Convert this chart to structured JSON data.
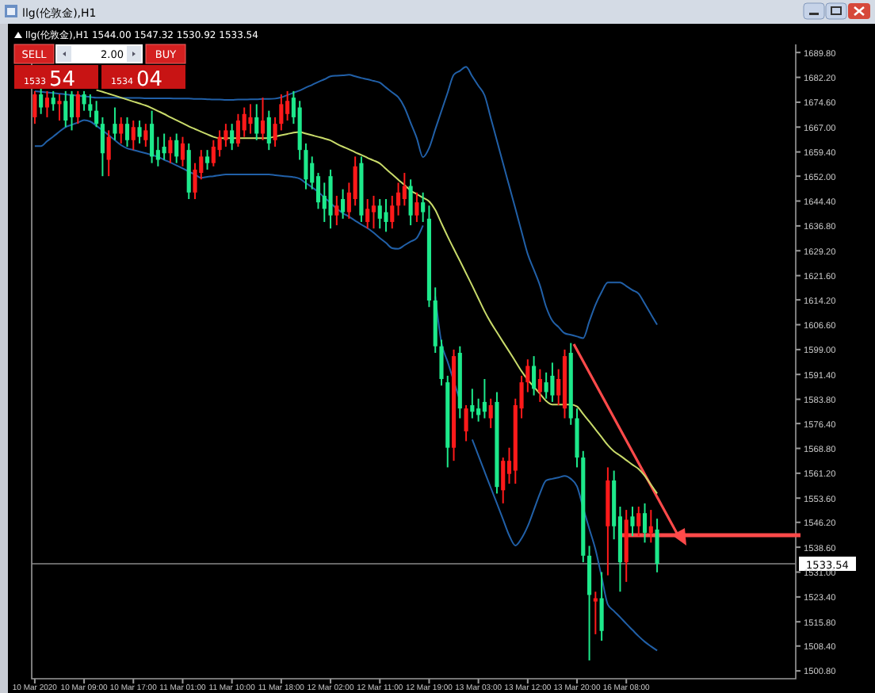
{
  "chart_data": {
    "type": "candlestick",
    "title": "llg(伦敦金),H1",
    "annotations": [
      "llg(伦敦金),H1  1544.00 1547.32 1530.92 1533.54",
      "SELL",
      "2.00",
      "BUY",
      "1533",
      "54",
      "1534",
      "04"
    ],
    "categories": [
      "10 Mar 2020",
      null,
      null,
      null,
      null,
      null,
      null,
      null,
      "10 Mar 09:00",
      null,
      null,
      null,
      null,
      null,
      null,
      null,
      "10 Mar 17:00",
      null,
      null,
      null,
      null,
      null,
      null,
      null,
      "11 Mar 01:00",
      null,
      null,
      null,
      null,
      null,
      null,
      null,
      "11 Mar 10:00",
      null,
      null,
      null,
      null,
      null,
      null,
      null,
      "11 Mar 18:00",
      null,
      null,
      null,
      null,
      null,
      null,
      null,
      "12 Mar 02:00",
      null,
      null,
      null,
      null,
      null,
      null,
      null,
      "12 Mar 11:00",
      null,
      null,
      null,
      null,
      null,
      null,
      null,
      "12 Mar 19:00",
      null,
      null,
      null,
      null,
      null,
      null,
      null,
      "13 Mar 03:00",
      null,
      null,
      null,
      null,
      null,
      null,
      null,
      "13 Mar 12:00",
      null,
      null,
      null,
      null,
      null,
      null,
      null,
      "13 Mar 20:00",
      null,
      null,
      null,
      null,
      null,
      null,
      null,
      "16 Mar 08:00",
      null,
      null,
      null,
      null,
      null
    ],
    "ohlc": [
      [
        1670,
        1678,
        1668,
        1677
      ],
      [
        1677,
        1679,
        1671,
        1673
      ],
      [
        1673,
        1678,
        1670,
        1676
      ],
      [
        1676,
        1678,
        1672,
        1674
      ],
      [
        1674,
        1677,
        1669,
        1675
      ],
      [
        1675,
        1678,
        1667,
        1669
      ],
      [
        1677,
        1678,
        1666,
        1670
      ],
      [
        1670,
        1678,
        1668,
        1677
      ],
      [
        1677,
        1678,
        1672,
        1674
      ],
      [
        1674,
        1677,
        1670,
        1672
      ],
      [
        1672,
        1675,
        1667,
        1668
      ],
      [
        1668,
        1670,
        1652,
        1659
      ],
      [
        1657,
        1666,
        1652,
        1664
      ],
      [
        1668,
        1673,
        1663,
        1665
      ],
      [
        1665,
        1670,
        1662,
        1668
      ],
      [
        1668,
        1670,
        1661,
        1663
      ],
      [
        1663,
        1669,
        1660,
        1667
      ],
      [
        1667,
        1669,
        1662,
        1664
      ],
      [
        1663,
        1668,
        1661,
        1666
      ],
      [
        1668,
        1672,
        1656,
        1658
      ],
      [
        1660,
        1664,
        1655,
        1657
      ],
      [
        1661,
        1665,
        1657,
        1659
      ],
      [
        1659,
        1664,
        1656,
        1663
      ],
      [
        1663,
        1665,
        1656,
        1658
      ],
      [
        1657,
        1664,
        1655,
        1662
      ],
      [
        1660,
        1662,
        1645,
        1647
      ],
      [
        1647,
        1656,
        1645,
        1654
      ],
      [
        1653,
        1660,
        1651,
        1658
      ],
      [
        1658,
        1660,
        1654,
        1656
      ],
      [
        1656,
        1663,
        1655,
        1661
      ],
      [
        1660,
        1666,
        1658,
        1664
      ],
      [
        1663,
        1668,
        1661,
        1666
      ],
      [
        1666,
        1668,
        1660,
        1662
      ],
      [
        1662,
        1671,
        1661,
        1669
      ],
      [
        1666,
        1673,
        1664,
        1671
      ],
      [
        1668,
        1674,
        1665,
        1670
      ],
      [
        1670,
        1674,
        1663,
        1665
      ],
      [
        1665,
        1676,
        1663,
        1669
      ],
      [
        1670,
        1672,
        1660,
        1662
      ],
      [
        1663,
        1670,
        1661,
        1668
      ],
      [
        1668,
        1677,
        1666,
        1674
      ],
      [
        1671,
        1678,
        1669,
        1675
      ],
      [
        1676,
        1678,
        1668,
        1670
      ],
      [
        1673,
        1675,
        1657,
        1660
      ],
      [
        1660,
        1662,
        1648,
        1651
      ],
      [
        1656,
        1658,
        1648,
        1650
      ],
      [
        1652,
        1653,
        1642,
        1644
      ],
      [
        1646,
        1650,
        1638,
        1642
      ],
      [
        1652,
        1654,
        1636,
        1640
      ],
      [
        1640,
        1646,
        1637,
        1643
      ],
      [
        1645,
        1648,
        1639,
        1641
      ],
      [
        1641,
        1650,
        1639,
        1647
      ],
      [
        1645,
        1658,
        1643,
        1655
      ],
      [
        1656,
        1658,
        1638,
        1640
      ],
      [
        1638,
        1645,
        1636,
        1642
      ],
      [
        1641,
        1646,
        1636,
        1643
      ],
      [
        1643,
        1645,
        1636,
        1639
      ],
      [
        1641,
        1645,
        1635,
        1638
      ],
      [
        1638,
        1646,
        1636,
        1643
      ],
      [
        1643,
        1650,
        1640,
        1647
      ],
      [
        1645,
        1653,
        1643,
        1649
      ],
      [
        1649,
        1651,
        1637,
        1640
      ],
      [
        1640,
        1647,
        1638,
        1644
      ],
      [
        1644,
        1647,
        1638,
        1641
      ],
      [
        1639,
        1643,
        1612,
        1614
      ],
      [
        1614,
        1618,
        1598,
        1600
      ],
      [
        1600,
        1602,
        1588,
        1590
      ],
      [
        1589,
        1591,
        1563,
        1569
      ],
      [
        1569,
        1599,
        1565,
        1597
      ],
      [
        1598,
        1600,
        1578,
        1581
      ],
      [
        1574,
        1582,
        1571,
        1581
      ],
      [
        1582,
        1587,
        1578,
        1580
      ],
      [
        1581,
        1584,
        1577,
        1579
      ],
      [
        1583,
        1590,
        1578,
        1580
      ],
      [
        1578,
        1584,
        1575,
        1582
      ],
      [
        1583,
        1586,
        1555,
        1557
      ],
      [
        1556,
        1566,
        1552,
        1565
      ],
      [
        1561,
        1569,
        1558,
        1565
      ],
      [
        1562,
        1584,
        1558,
        1582
      ],
      [
        1581,
        1591,
        1578,
        1589
      ],
      [
        1589,
        1596,
        1586,
        1594
      ],
      [
        1594,
        1597,
        1585,
        1587
      ],
      [
        1586,
        1593,
        1583,
        1590
      ],
      [
        1589,
        1592,
        1584,
        1586
      ],
      [
        1591,
        1595,
        1583,
        1585
      ],
      [
        1585,
        1593,
        1582,
        1590
      ],
      [
        1581,
        1599,
        1578,
        1597
      ],
      [
        1598,
        1601,
        1576,
        1578
      ],
      [
        1578,
        1581,
        1563,
        1566
      ],
      [
        1566,
        1568,
        1534,
        1536
      ],
      [
        1536,
        1539,
        1504,
        1524
      ],
      [
        1522,
        1525,
        1512,
        1523
      ],
      [
        1523,
        1531,
        1510,
        1513
      ],
      [
        1545,
        1563,
        1530,
        1559
      ],
      [
        1559,
        1562,
        1541,
        1545
      ],
      [
        1548,
        1551,
        1525,
        1534
      ],
      [
        1534,
        1550,
        1528,
        1547
      ],
      [
        1548,
        1551,
        1542,
        1545
      ],
      [
        1545,
        1551,
        1542,
        1549
      ],
      [
        1549,
        1552,
        1540,
        1543
      ],
      [
        1543,
        1550,
        1540,
        1545
      ],
      [
        1544.0,
        1547.32,
        1530.92,
        1533.54
      ]
    ],
    "colors": [
      "#ff1a1a",
      "#1de98b",
      "#ff1a1a",
      "#1de98b",
      "#ff1a1a",
      "#1de98b",
      "#1de98b",
      "#ff1a1a",
      "#1de98b",
      "#1de98b",
      "#1de98b",
      "#1de98b",
      "#ff1a1a",
      "#1de98b",
      "#ff1a1a",
      "#1de98b",
      "#ff1a1a",
      "#1de98b",
      "#ff1a1a",
      "#1de98b",
      "#1de98b",
      "#1de98b",
      "#ff1a1a",
      "#1de98b",
      "#ff1a1a",
      "#1de98b",
      "#ff1a1a",
      "#ff1a1a",
      "#1de98b",
      "#ff1a1a",
      "#ff1a1a",
      "#ff1a1a",
      "#1de98b",
      "#ff1a1a",
      "#ff1a1a",
      "#ff1a1a",
      "#1de98b",
      "#ff1a1a",
      "#1de98b",
      "#ff1a1a",
      "#ff1a1a",
      "#ff1a1a",
      "#1de98b",
      "#1de98b",
      "#1de98b",
      "#1de98b",
      "#1de98b",
      "#1de98b",
      "#1de98b",
      "#ff1a1a",
      "#1de98b",
      "#ff1a1a",
      "#ff1a1a",
      "#1de98b",
      "#ff1a1a",
      "#ff1a1a",
      "#1de98b",
      "#1de98b",
      "#ff1a1a",
      "#ff1a1a",
      "#ff1a1a",
      "#1de98b",
      "#ff1a1a",
      "#1de98b",
      "#1de98b",
      "#1de98b",
      "#1de98b",
      "#1de98b",
      "#ff1a1a",
      "#1de98b",
      "#ff1a1a",
      "#1de98b",
      "#1de98b",
      "#1de98b",
      "#ff1a1a",
      "#1de98b",
      "#ff1a1a",
      "#ff1a1a",
      "#ff1a1a",
      "#ff1a1a",
      "#ff1a1a",
      "#1de98b",
      "#ff1a1a",
      "#1de98b",
      "#1de98b",
      "#ff1a1a",
      "#ff1a1a",
      "#1de98b",
      "#1de98b",
      "#1de98b",
      "#1de98b",
      "#ff1a1a",
      "#1de98b",
      "#ff1a1a",
      "#1de98b",
      "#1de98b",
      "#ff1a1a",
      "#1de98b",
      "#ff1a1a",
      "#1de98b",
      "#ff1a1a",
      "#1de98b"
    ],
    "series": [
      {
        "type": "line",
        "color": "#2160a8",
        "values": [
          1678.0,
          1677.8,
          1677.6,
          1677.4,
          1677.2,
          1677.0,
          1676.8,
          1676.6,
          1676.4,
          1676.2,
          1676.0,
          1676.0,
          1676.0,
          1676.0,
          1675.9,
          1675.9,
          1675.9,
          1675.9,
          1675.8,
          1675.8,
          1675.8,
          1675.8,
          1675.8,
          1675.7,
          1675.7,
          1675.7,
          1675.6,
          1675.6,
          1675.5,
          1675.4,
          1675.4,
          1675.3,
          1675.3,
          1675.4,
          1675.4,
          1675.5,
          1675.5,
          1675.6,
          1675.6,
          1675.7,
          1676.1,
          1676.8,
          1677.5,
          1678.2,
          1679.1,
          1679.9,
          1680.8,
          1681.6,
          1682.5,
          1682.7,
          1682.8,
          1683.0,
          1682.5,
          1682.0,
          1681.6,
          1681.1,
          1680.6,
          1679.1,
          1677.6,
          1676.1,
          1673.0,
          1668.3,
          1663.6,
          1657.8,
          1660.6,
          1666.3,
          1671.9,
          1677.5,
          1683.0,
          1684.2,
          1685.4,
          1682.5,
          1679.6,
          1676.7,
          1669.8,
          1662.9,
          1655.9,
          1649.0,
          1642.1,
          1635.1,
          1628.2,
          1623.4,
          1618.5,
          1612.0,
          1607.8,
          1605.9,
          1604.0,
          1603.5,
          1603.0,
          1602.5,
          1607.6,
          1612.7,
          1616.6,
          1619.5,
          1619.5,
          1619.5,
          1618.4,
          1617.2,
          1616.1,
          1613.0,
          1609.8,
          1606.6
        ]
      },
      {
        "type": "line",
        "color": "#c9db6a",
        "values": [
          null,
          null,
          null,
          null,
          null,
          null,
          null,
          null,
          null,
          null,
          1678.3,
          1677.8,
          1677.2,
          1676.6,
          1676.0,
          1675.4,
          1674.8,
          1674.2,
          1673.6,
          1672.8,
          1671.9,
          1671.0,
          1670.0,
          1669.1,
          1668.2,
          1667.2,
          1666.4,
          1665.6,
          1664.8,
          1664.0,
          1663.6,
          1663.6,
          1663.6,
          1663.6,
          1663.6,
          1663.6,
          1663.6,
          1663.6,
          1663.7,
          1664.1,
          1664.5,
          1664.9,
          1665.3,
          1665.5,
          1665.0,
          1664.5,
          1664.0,
          1663.5,
          1662.9,
          1661.9,
          1661.0,
          1660.2,
          1659.3,
          1658.5,
          1657.6,
          1656.8,
          1655.9,
          1654.2,
          1652.6,
          1650.9,
          1649.3,
          1647.6,
          1646.5,
          1645.4,
          1644.3,
          1641.7,
          1637.6,
          1633.6,
          1629.8,
          1626.1,
          1622.3,
          1618.5,
          1614.6,
          1610.7,
          1607.3,
          1604.3,
          1601.3,
          1598.4,
          1595.4,
          1592.4,
          1589.8,
          1587.6,
          1585.5,
          1583.3,
          1582.2,
          1582.2,
          1582.2,
          1582.2,
          1581.6,
          1579.3,
          1577.0,
          1574.6,
          1572.2,
          1569.8,
          1567.9,
          1566.6,
          1565.2,
          1563.8,
          1562.5,
          1560.4,
          1557.7,
          1555.0
        ]
      },
      {
        "type": "line",
        "color": "#2160a8",
        "values": [
          1661.2,
          1661.2,
          1662.7,
          1664.1,
          1665.6,
          1667.0,
          1667.7,
          1668.4,
          1669.1,
          1668.7,
          1667.4,
          1666.0,
          1664.5,
          1663.0,
          1661.5,
          1660.5,
          1660.0,
          1659.5,
          1659.0,
          1658.5,
          1657.9,
          1657.0,
          1656.2,
          1655.3,
          1654.4,
          1653.4,
          1652.5,
          1651.5,
          1651.8,
          1652.0,
          1652.3,
          1652.5,
          1652.5,
          1652.5,
          1652.5,
          1652.5,
          1652.5,
          1652.5,
          1652.5,
          1652.3,
          1652.1,
          1651.9,
          1651.7,
          1651.2,
          1649.9,
          1648.6,
          1647.2,
          1645.5,
          1643.8,
          1642.1,
          1640.7,
          1639.6,
          1638.4,
          1637.2,
          1636.1,
          1634.7,
          1633.1,
          1631.6,
          1630.0,
          1629.8,
          1630.9,
          1632.0,
          1633.1,
          1636.9,
          null,
          1615.3,
          1601.1,
          1595.3,
          1589.4,
          1583.4,
          null,
          1571.5,
          1566.6,
          1561.7,
          1556.8,
          1552.0,
          1547.1,
          1542.2,
          1539.1,
          1541.3,
          1545.0,
          1550.0,
          1555.1,
          1559.0,
          1559.5,
          1559.9,
          1560.4,
          1559.5,
          1557.2,
          1550.6,
          1544.2,
          1537.9,
          1529.5,
          1521.1,
          1519.1,
          1517.2,
          1515.2,
          1513.3,
          1511.4,
          1509.7,
          1508.3,
          1507.0
        ]
      }
    ],
    "ylim": [
      1498.4,
      1691.3
    ],
    "yticks": [
      {
        "value": 1689.8,
        "label": "1689.80"
      },
      {
        "value": 1682.2,
        "label": "1682.20"
      },
      {
        "value": 1674.6,
        "label": "1674.60"
      },
      {
        "value": 1667,
        "label": "1667.00"
      },
      {
        "value": 1659.4,
        "label": "1659.40"
      },
      {
        "value": 1652,
        "label": "1652.00"
      },
      {
        "value": 1644.4,
        "label": "1644.40"
      },
      {
        "value": 1636.8,
        "label": "1636.80"
      },
      {
        "value": 1629.2,
        "label": "1629.20"
      },
      {
        "value": 1621.6,
        "label": "1621.60"
      },
      {
        "value": 1614.2,
        "label": "1614.20"
      },
      {
        "value": 1606.6,
        "label": "1606.60"
      },
      {
        "value": 1599,
        "label": "1599.00"
      },
      {
        "value": 1591.4,
        "label": "1591.40"
      },
      {
        "value": 1583.8,
        "label": "1583.80"
      },
      {
        "value": 1576.4,
        "label": "1576.40"
      },
      {
        "value": 1568.8,
        "label": "1568.80"
      },
      {
        "value": 1561.2,
        "label": "1561.20"
      },
      {
        "value": 1553.6,
        "label": "1553.60"
      },
      {
        "value": 1546.2,
        "label": "1546.20"
      },
      {
        "value": 1538.6,
        "label": "1538.60"
      },
      {
        "value": 1531,
        "label": "1531.00"
      },
      {
        "value": 1523.4,
        "label": "1523.40"
      },
      {
        "value": 1515.8,
        "label": "1515.80"
      },
      {
        "value": 1508.4,
        "label": "1508.40"
      },
      {
        "value": 1500.8,
        "label": "1500.80"
      }
    ],
    "ref_lines": [
      {
        "axis": "y",
        "value": 1533.54,
        "label": "1533.54",
        "color": "#8a8a8a"
      }
    ]
  }
}
